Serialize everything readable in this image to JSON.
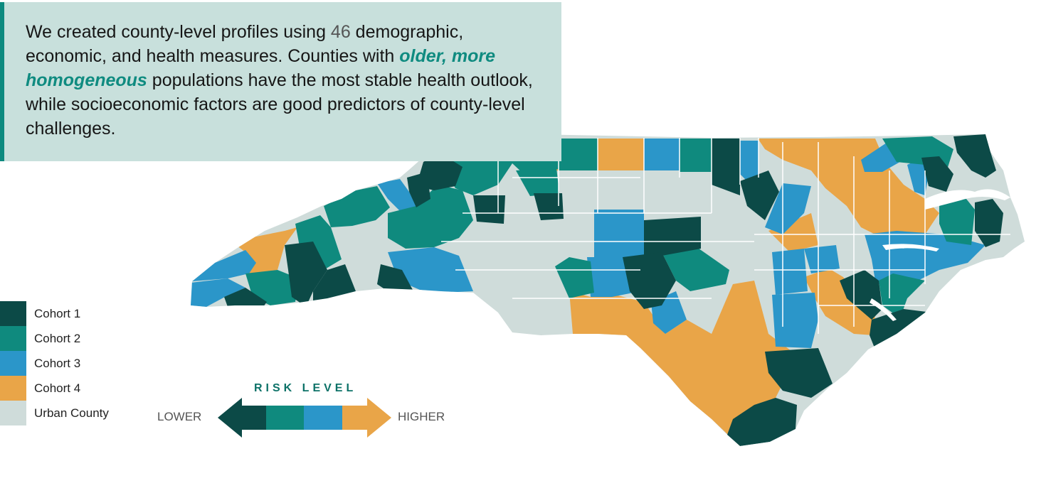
{
  "callout": {
    "text_1": "We created county-level profiles using ",
    "number": "46",
    "text_2": " demographic, economic, and health measures. Counties with ",
    "emphasis": "older, more homogeneous",
    "text_3": " populations have the most stable health outlook, while socioeconomic factors are good predictors of county-level challenges."
  },
  "colors": {
    "cohort1": "#0c4a47",
    "cohort2": "#0f8a7e",
    "cohort3": "#2b96c9",
    "cohort4": "#e9a548",
    "urban": "#cfdcda",
    "callout_bg": "#c8e0dc",
    "accent": "#0f8b80"
  },
  "legend": [
    {
      "key": "cohort1",
      "label": "Cohort 1"
    },
    {
      "key": "cohort2",
      "label": "Cohort 2"
    },
    {
      "key": "cohort3",
      "label": "Cohort 3"
    },
    {
      "key": "cohort4",
      "label": "Cohort 4"
    },
    {
      "key": "urban",
      "label": "Urban County"
    }
  ],
  "risk_scale": {
    "title": "RISK LEVEL",
    "lower_label": "LOWER",
    "higher_label": "HIGHER",
    "order": [
      "cohort1",
      "cohort2",
      "cohort3",
      "cohort4"
    ]
  },
  "map": {
    "region": "North Carolina",
    "unit": "county",
    "county_groups": [
      "cohort1",
      "cohort2",
      "cohort3",
      "cohort4",
      "urban"
    ]
  }
}
